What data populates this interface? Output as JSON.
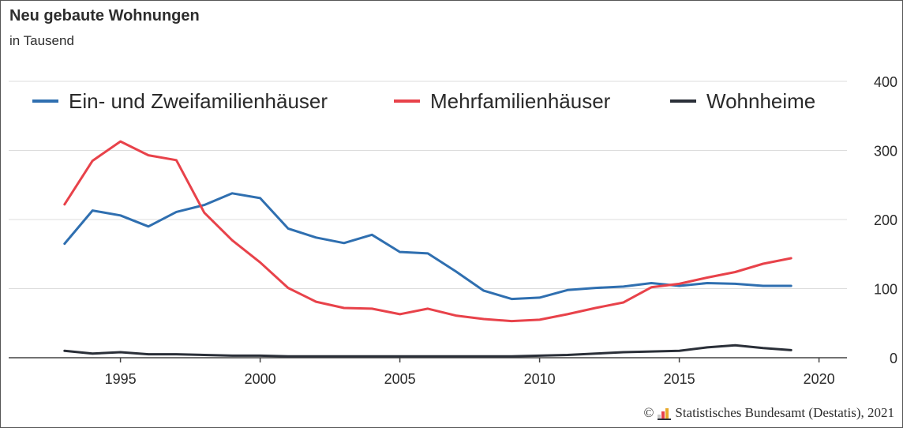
{
  "title": "Neu gebaute Wohnungen",
  "subtitle": "in Tausend",
  "copyright": {
    "symbol": "©",
    "text": "Statistisches Bundesamt (Destatis), 2021"
  },
  "chart_data": {
    "type": "line",
    "title": "Neu gebaute Wohnungen",
    "subtitle": "in Tausend",
    "xlabel": "",
    "ylabel": "",
    "x": [
      1993,
      1994,
      1995,
      1996,
      1997,
      1998,
      1999,
      2000,
      2001,
      2002,
      2003,
      2004,
      2005,
      2006,
      2007,
      2008,
      2009,
      2010,
      2011,
      2012,
      2013,
      2014,
      2015,
      2016,
      2017,
      2018,
      2019
    ],
    "xlim": [
      1991,
      2021
    ],
    "xticks": [
      1995,
      2000,
      2005,
      2010,
      2015,
      2020
    ],
    "ylim": [
      0,
      400
    ],
    "yticks": [
      0,
      100,
      200,
      300,
      400
    ],
    "grid": "horizontal",
    "legend_position": "top",
    "series": [
      {
        "name": "Ein- und Zweifamilienhäuser",
        "color": "#2f6fb0",
        "values": [
          165,
          213,
          206,
          190,
          211,
          221,
          238,
          231,
          187,
          174,
          166,
          178,
          153,
          151,
          125,
          97,
          85,
          87,
          98,
          101,
          103,
          108,
          104,
          108,
          107,
          104,
          104
        ]
      },
      {
        "name": "Mehrfamilienhäuser",
        "color": "#e8424a",
        "values": [
          222,
          285,
          313,
          293,
          286,
          210,
          170,
          138,
          101,
          81,
          72,
          71,
          63,
          71,
          61,
          56,
          53,
          55,
          63,
          72,
          80,
          102,
          107,
          116,
          124,
          136,
          144
        ]
      },
      {
        "name": "Wohnheime",
        "color": "#2a2f38",
        "values": [
          10,
          6,
          8,
          5,
          5,
          4,
          3,
          3,
          2,
          2,
          2,
          2,
          2,
          2,
          2,
          2,
          2,
          3,
          4,
          6,
          8,
          9,
          10,
          15,
          18,
          14,
          11
        ]
      }
    ]
  }
}
